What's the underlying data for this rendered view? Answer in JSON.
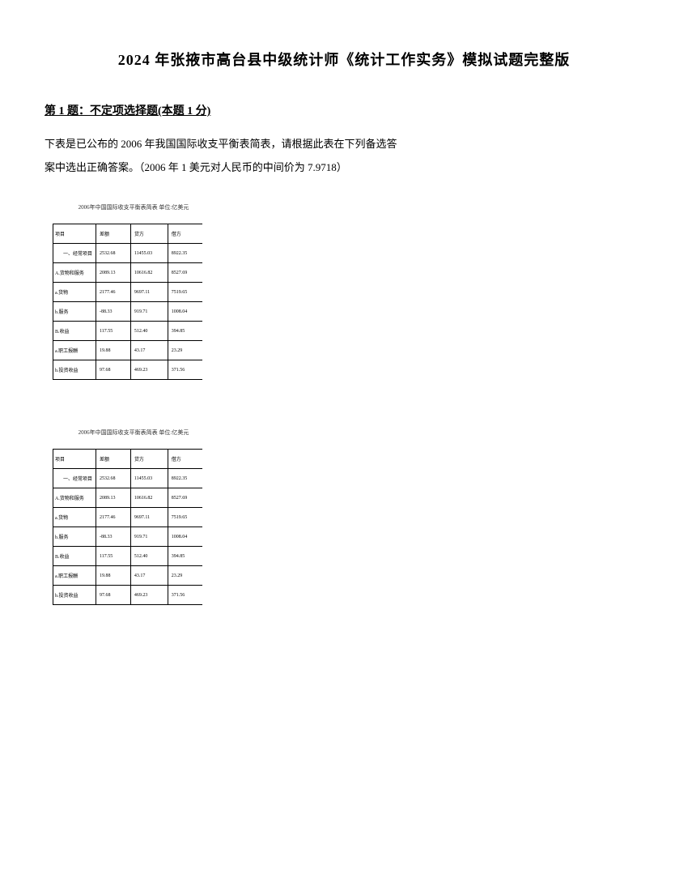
{
  "document": {
    "title": "2024 年张掖市高台县中级统计师《统计工作实务》模拟试题完整版",
    "question_header": "第 1 题：不定项选择题(本题 1 分)",
    "question_line1": "下表是已公布的 2006 年我国国际收支平衡表简表，请根据此表在下列备选答",
    "question_line2": "案中选出正确答案。（2006 年 1 美元对人民币的中间价为 7.9718）"
  },
  "table": {
    "title": "2006年中国国际收支平衡表简表 单位:亿美元",
    "headers": {
      "col1": "项目",
      "col2": "差额",
      "col3": "贷方",
      "col4": "借方"
    },
    "rows": [
      {
        "label": "一、经常项目",
        "val1": "2532.68",
        "val2": "11455.03",
        "val3": "8922.35",
        "indent": true
      },
      {
        "label": "A.货物和服务",
        "val1": "2089.13",
        "val2": "10616.82",
        "val3": "8527.69"
      },
      {
        "label": "a.货物",
        "val1": "2177.46",
        "val2": "9697.11",
        "val3": "7519.65"
      },
      {
        "label": "b.服务",
        "val1": "-88.33",
        "val2": "919.71",
        "val3": "1008.04"
      },
      {
        "label": "B.收益",
        "val1": "117.55",
        "val2": "512.40",
        "val3": "394.85"
      },
      {
        "label": "a.职工报酬",
        "val1": "19.88",
        "val2": "43.17",
        "val3": "23.29"
      },
      {
        "label": "b.投资收益",
        "val1": "97.68",
        "val2": "469.23",
        "val3": "371.56"
      }
    ]
  }
}
